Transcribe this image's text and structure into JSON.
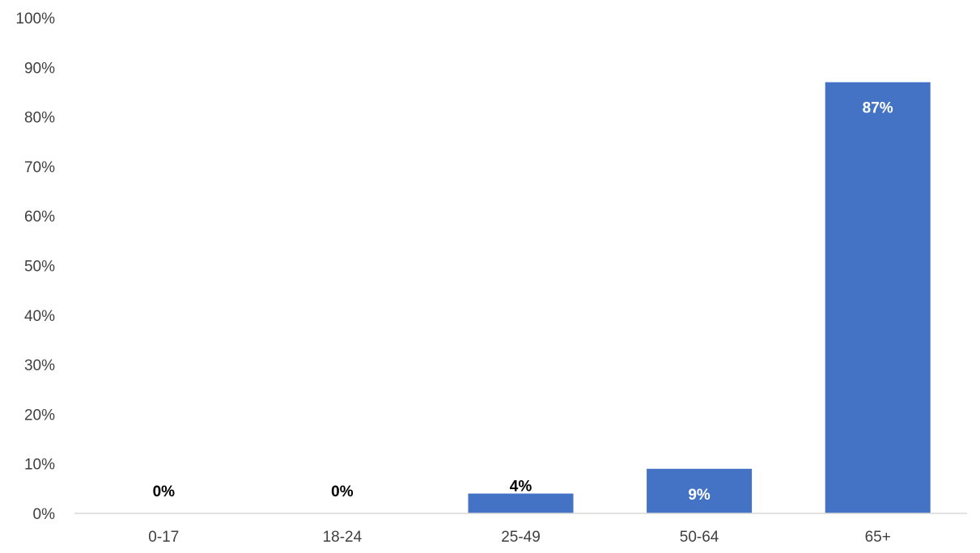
{
  "chart_data": {
    "type": "bar",
    "title": "",
    "xlabel": "",
    "ylabel": "",
    "categories": [
      "0-17",
      "18-24",
      "25-49",
      "50-64",
      "65+"
    ],
    "values": [
      0,
      0,
      4,
      9,
      87
    ],
    "value_labels": [
      "0%",
      "0%",
      "4%",
      "9%",
      "87%"
    ],
    "ylim": [
      0,
      100
    ],
    "y_ticks": [
      0,
      10,
      20,
      30,
      40,
      50,
      60,
      70,
      80,
      90,
      100
    ],
    "y_tick_labels": [
      "0%",
      "10%",
      "20%",
      "30%",
      "40%",
      "50%",
      "60%",
      "70%",
      "80%",
      "90%",
      "100%"
    ],
    "grid": false,
    "legend": "none",
    "bar_color": "#4472C4",
    "label_color_inside": "#FFFFFF",
    "label_color_outside": "#000000",
    "axis_color": "#D9D9D9",
    "tick_text_color": "#404040"
  }
}
